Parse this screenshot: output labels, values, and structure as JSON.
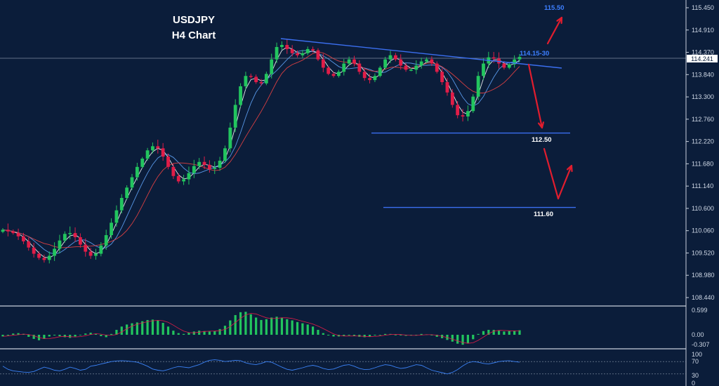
{
  "chart_data": {
    "type": "candlestick",
    "title": "USDJPY",
    "subtitle": "H4 Chart",
    "price_axis": {
      "ticks": [
        "115.450",
        "114.910",
        "114.370",
        "113.840",
        "113.300",
        "112.760",
        "112.220",
        "111.680",
        "111.140",
        "110.600",
        "110.060",
        "109.520",
        "108.980",
        "108.440"
      ],
      "ylim": [
        108.2,
        115.6
      ]
    },
    "current_price": "114.241",
    "annotations": {
      "target_up": "115.50",
      "resistance_zone": "114.15-30",
      "support_1": "112.50",
      "support_2": "111.60"
    },
    "levels": {
      "support_1": 112.42,
      "support_2": 110.62,
      "resistance_line": {
        "start": [
          0,
          114.78
        ],
        "end": [
          1,
          113.98
        ]
      }
    },
    "price_series": [
      110.08,
      110.04,
      110.0,
      109.92,
      109.8,
      109.65,
      109.5,
      109.4,
      109.35,
      109.45,
      109.62,
      109.82,
      109.98,
      110.0,
      109.9,
      109.72,
      109.55,
      109.45,
      109.5,
      109.7,
      109.95,
      110.25,
      110.55,
      110.85,
      111.1,
      111.35,
      111.6,
      111.8,
      112.0,
      112.1,
      112.05,
      111.85,
      111.6,
      111.38,
      111.25,
      111.3,
      111.45,
      111.62,
      111.72,
      111.65,
      111.55,
      111.58,
      111.75,
      112.05,
      112.55,
      113.1,
      113.55,
      113.8,
      113.78,
      113.65,
      113.62,
      113.85,
      114.2,
      114.5,
      114.55,
      114.45,
      114.35,
      114.3,
      114.35,
      114.45,
      114.42,
      114.2,
      114.0,
      113.85,
      113.8,
      113.9,
      114.1,
      114.2,
      114.1,
      113.9,
      113.75,
      113.7,
      113.8,
      114.0,
      114.2,
      114.3,
      114.2,
      114.05,
      113.95,
      113.95,
      114.05,
      114.15,
      114.2,
      114.1,
      113.9,
      113.65,
      113.4,
      113.1,
      112.85,
      112.82,
      112.95,
      113.3,
      113.8,
      114.1,
      114.25,
      114.22,
      114.1,
      114.0,
      114.08,
      114.2,
      114.26
    ],
    "oscillator": {
      "axis_ticks": [
        "0.599",
        "0.00",
        "-0.307"
      ],
      "series": [
        -0.05,
        -0.02,
        0.03,
        0.04,
        0.02,
        -0.06,
        -0.12,
        -0.16,
        -0.12,
        -0.05,
        -0.02,
        -0.04,
        -0.07,
        -0.09,
        -0.05,
        0.0,
        0.03,
        0.05,
        0.02,
        -0.04,
        -0.07,
        0.02,
        0.12,
        0.2,
        0.25,
        0.28,
        0.3,
        0.33,
        0.36,
        0.37,
        0.35,
        0.29,
        0.2,
        0.1,
        0.04,
        0.02,
        0.05,
        0.08,
        0.1,
        0.09,
        0.08,
        0.09,
        0.14,
        0.22,
        0.35,
        0.48,
        0.55,
        0.56,
        0.5,
        0.42,
        0.36,
        0.38,
        0.42,
        0.44,
        0.42,
        0.38,
        0.35,
        0.31,
        0.28,
        0.25,
        0.2,
        0.12,
        0.04,
        -0.02,
        -0.05,
        -0.05,
        -0.03,
        -0.02,
        -0.04,
        -0.06,
        -0.07,
        -0.05,
        -0.02,
        0.0,
        0.02,
        0.02,
        0.0,
        -0.02,
        -0.03,
        -0.02,
        0.0,
        0.02,
        0.01,
        -0.02,
        -0.06,
        -0.1,
        -0.15,
        -0.2,
        -0.26,
        -0.29,
        -0.25,
        -0.13,
        0.02,
        0.09,
        0.12,
        0.12,
        0.1,
        0.08,
        0.09,
        0.1,
        0.11
      ]
    },
    "rsi": {
      "axis_ticks": [
        "100",
        "70",
        "30",
        "0"
      ],
      "series": [
        55,
        45,
        40,
        38,
        36,
        35,
        38,
        45,
        52,
        48,
        42,
        40,
        45,
        52,
        48,
        42,
        45,
        55,
        58,
        62,
        66,
        70,
        72,
        73,
        72,
        70,
        68,
        62,
        55,
        46,
        42,
        40,
        44,
        50,
        54,
        52,
        50,
        55,
        60,
        68,
        74,
        76,
        74,
        70,
        72,
        74,
        73,
        66,
        62,
        60,
        64,
        70,
        68,
        60,
        52,
        45,
        42,
        46,
        50,
        55,
        58,
        54,
        48,
        44,
        46,
        52,
        58,
        60,
        55,
        48,
        44,
        45,
        50,
        56,
        60,
        58,
        52,
        48,
        50,
        55,
        60,
        58,
        50,
        42,
        38,
        34,
        30,
        35,
        44,
        56,
        66,
        70,
        68,
        64,
        62,
        66,
        70,
        72,
        73,
        70,
        68
      ]
    }
  }
}
